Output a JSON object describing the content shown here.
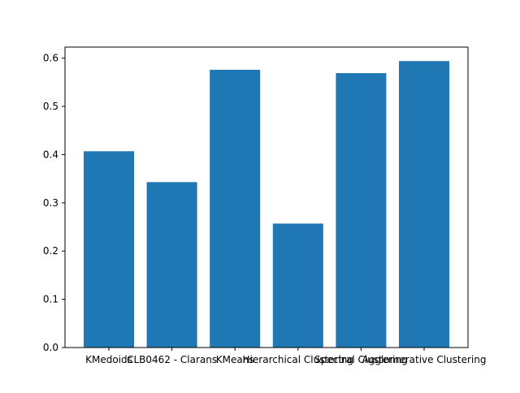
{
  "chart_data": {
    "type": "bar",
    "categories": [
      "KMedoids",
      "CLB0462 - Clarans",
      "KMeans",
      "Hierarchical Clustering",
      "Spectral Clustering",
      "Agglomerative Clustering"
    ],
    "values": [
      0.407,
      0.343,
      0.576,
      0.257,
      0.569,
      0.594
    ],
    "ylim": [
      0,
      0.623
    ],
    "yticks": [
      "0.0",
      "0.1",
      "0.2",
      "0.3",
      "0.4",
      "0.5",
      "0.6"
    ],
    "title": "",
    "xlabel": "",
    "ylabel": "",
    "bar_color": "#1f77b4",
    "grid": false
  }
}
